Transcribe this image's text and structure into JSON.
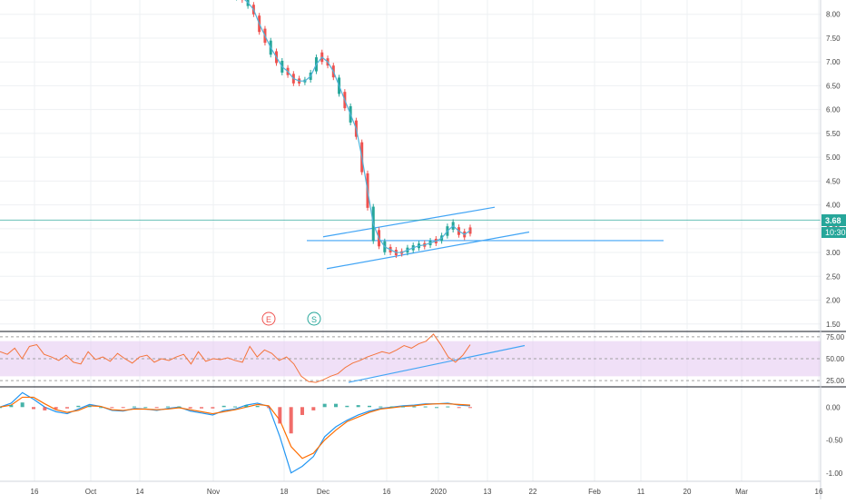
{
  "colors": {
    "up": "#26a69a",
    "down": "#ef5350",
    "sma": "#4fb3d9",
    "trendline": "#42a5f5",
    "price_line": "#26a69a",
    "rsi_line": "#f4743b",
    "rsi_band": "#e6ccf2",
    "macd_line": "#2196f3",
    "signal_line": "#ff6d00",
    "grid": "#eef0f3",
    "axis_text": "#444444"
  },
  "price_axis": {
    "ticks": [
      "8.00",
      "7.50",
      "7.00",
      "6.50",
      "6.00",
      "5.50",
      "5.00",
      "4.50",
      "4.00",
      "3.50",
      "3.00",
      "2.50",
      "2.00",
      "1.50"
    ],
    "last_price_label": "3.68",
    "countdown_label": "10:30"
  },
  "rsi_axis": {
    "ticks": [
      "75.00",
      "50.00",
      "25.00"
    ]
  },
  "macd_axis": {
    "ticks": [
      "0.00",
      "-0.50",
      "-1.00"
    ]
  },
  "time_axis": {
    "labels": [
      "16",
      "Oct",
      "14",
      "Nov",
      "18",
      "Dec",
      "16",
      "2020",
      "13",
      "22",
      "Feb",
      "11",
      "20",
      "Mar",
      "16"
    ]
  },
  "markers": [
    {
      "id": "earnings",
      "label": "E"
    },
    {
      "id": "split",
      "label": "S"
    }
  ],
  "chart_data": [
    {
      "type": "line",
      "panel": "price",
      "ylim": [
        1.4,
        8.3
      ],
      "series": [
        {
          "values": [
            8.5,
            8.45,
            8.4,
            8.35,
            8.25,
            8.1,
            7.8,
            7.55,
            7.3,
            7.1,
            6.9,
            6.8,
            6.65,
            6.6,
            6.6,
            6.7,
            6.95,
            7.1,
            7.0,
            6.8,
            6.5,
            6.2,
            5.9,
            5.6,
            5.0,
            4.3,
            3.6,
            3.3,
            3.12,
            3.06,
            3.0,
            3.0,
            3.05,
            3.1,
            3.14,
            3.16,
            3.2,
            3.24,
            3.3,
            3.45,
            3.56,
            3.45,
            3.38,
            3.46
          ]
        }
      ],
      "last_price": 3.68,
      "horizontal_line": 3.25,
      "trendlines": [
        {
          "name": "channel_upper",
          "from": 3.33,
          "to": 3.95
        },
        {
          "name": "channel_lower",
          "from": 2.66,
          "to": 3.43
        },
        {
          "name": "support",
          "from": 3.25,
          "to": 3.25
        }
      ]
    },
    {
      "type": "line",
      "panel": "rsi",
      "ylim": [
        20,
        80
      ],
      "band": [
        30,
        70
      ],
      "levels": [
        25,
        50,
        75
      ],
      "series": [
        {
          "values": [
            58,
            55,
            62,
            50,
            64,
            66,
            55,
            52,
            48,
            54,
            46,
            44,
            58,
            49,
            52,
            47,
            56,
            50,
            45,
            52,
            54,
            46,
            50,
            48,
            52,
            55,
            44,
            58,
            47,
            50,
            49,
            51,
            48,
            46,
            64,
            52,
            60,
            56,
            48,
            52,
            44,
            30,
            24,
            23,
            26,
            30,
            33,
            40,
            45,
            48,
            52,
            55,
            58,
            56,
            60,
            65,
            62,
            67,
            70,
            78,
            66,
            52,
            46,
            54,
            66
          ]
        }
      ],
      "trendline": {
        "from": 23,
        "to": 65
      }
    },
    {
      "type": "line",
      "panel": "macd",
      "ylim": [
        -1.1,
        0.28
      ],
      "series": [
        {
          "name": "macd",
          "values": [
            0.0,
            0.06,
            0.22,
            0.12,
            0.0,
            -0.07,
            -0.1,
            -0.03,
            0.04,
            0.01,
            -0.05,
            -0.06,
            -0.02,
            -0.03,
            -0.05,
            -0.02,
            0.0,
            -0.06,
            -0.09,
            -0.12,
            -0.05,
            -0.03,
            0.03,
            0.06,
            0.01,
            -0.45,
            -1.0,
            -0.9,
            -0.75,
            -0.45,
            -0.3,
            -0.2,
            -0.12,
            -0.06,
            -0.02,
            0.0,
            0.02,
            0.03,
            0.05,
            0.05,
            0.06,
            0.03,
            0.02
          ]
        },
        {
          "name": "signal",
          "values": [
            0.0,
            0.03,
            0.15,
            0.15,
            0.05,
            -0.04,
            -0.08,
            -0.05,
            0.02,
            0.01,
            -0.04,
            -0.05,
            -0.03,
            -0.03,
            -0.04,
            -0.03,
            -0.01,
            -0.04,
            -0.07,
            -0.1,
            -0.07,
            -0.04,
            0.0,
            0.04,
            0.02,
            -0.2,
            -0.6,
            -0.78,
            -0.7,
            -0.5,
            -0.35,
            -0.22,
            -0.15,
            -0.08,
            -0.03,
            -0.01,
            0.01,
            0.02,
            0.04,
            0.05,
            0.05,
            0.04,
            0.03
          ]
        }
      ]
    }
  ]
}
